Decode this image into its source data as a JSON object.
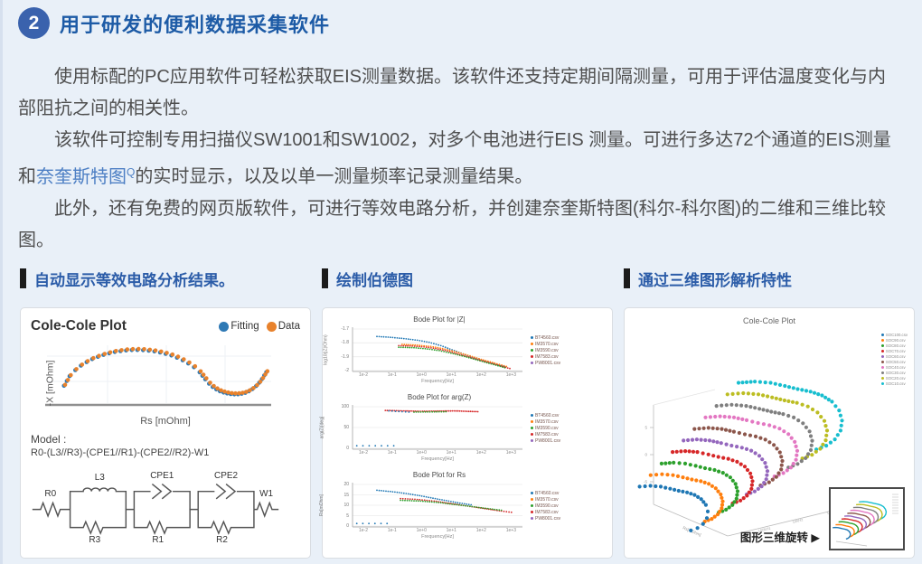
{
  "page": {
    "bg": "#e9f0f8",
    "accent_blue": "#1d5ba6",
    "body_text_color": "#4e4e4e"
  },
  "header": {
    "badge": "2",
    "title": "用于研发的便利数据采集软件"
  },
  "intro": {
    "p1": "使用标配的PC应用软件可轻松获取EIS测量数据。该软件还支持定期间隔测量，可用于评估温度变化与内部阻抗之间的相关性。",
    "p2_pre": "该软件可控制专用扫描仪SW1001和SW1002，对多个电池进行EIS 测量。可进行多达72个通道的EIS测量和",
    "p2_link": "奈奎斯特图",
    "p2_sup": "Q",
    "p2_post": "的实时显示，以及以单一测量频率记录测量结果。",
    "p3": "此外，还有免费的网页版软件，可进行等效电路分析，并创建奈奎斯特图(科尔-科尔图)的二维和三维比较图。"
  },
  "panels": {
    "left_title": "自动显示等效电路分析结果。",
    "mid_title": "绘制伯德图",
    "right_title": "通过三维图形解析特性"
  },
  "cole": {
    "model_label": "Model :",
    "model_formula": "R0-(L3//R3)-(CPE1//R1)-(CPE2//R2)-W1",
    "circuit": {
      "r0": "R0",
      "l3": "L3",
      "r3": "R3",
      "cpe1": "CPE1",
      "r1": "R1",
      "cpe2": "CPE2",
      "r2": "R2",
      "w1": "W1"
    }
  },
  "rotate_note": "图形三维旋转 ▶",
  "chart_data": [
    {
      "type": "scatter",
      "title": "Cole-Cole Plot",
      "xlabel": "Rs [mOhm]",
      "ylabel": "-X [mOhm]",
      "legend": [
        {
          "name": "Fitting",
          "color": "#2e79b5"
        },
        {
          "name": "Data",
          "color": "#e8822c"
        }
      ],
      "points": [
        [
          0.08,
          0.214
        ],
        [
          0.105,
          0.326
        ],
        [
          0.13,
          0.396
        ],
        [
          0.155,
          0.448
        ],
        [
          0.18,
          0.49
        ],
        [
          0.205,
          0.524
        ],
        [
          0.23,
          0.551
        ],
        [
          0.255,
          0.574
        ],
        [
          0.28,
          0.592
        ],
        [
          0.305,
          0.607
        ],
        [
          0.33,
          0.617
        ],
        [
          0.355,
          0.625
        ],
        [
          0.38,
          0.629
        ],
        [
          0.405,
          0.63
        ],
        [
          0.43,
          0.628
        ],
        [
          0.455,
          0.622
        ],
        [
          0.48,
          0.614
        ],
        [
          0.505,
          0.601
        ],
        [
          0.53,
          0.585
        ],
        [
          0.555,
          0.566
        ],
        [
          0.58,
          0.541
        ],
        [
          0.605,
          0.511
        ],
        [
          0.63,
          0.474
        ],
        [
          0.655,
          0.429
        ],
        [
          0.68,
          0.371
        ],
        [
          0.705,
          0.29
        ],
        [
          0.722,
          0.238
        ],
        [
          0.738,
          0.2
        ],
        [
          0.754,
          0.172
        ],
        [
          0.77,
          0.15
        ],
        [
          0.786,
          0.135
        ],
        [
          0.802,
          0.124
        ],
        [
          0.818,
          0.117
        ],
        [
          0.834,
          0.114
        ],
        [
          0.85,
          0.115
        ],
        [
          0.866,
          0.121
        ],
        [
          0.882,
          0.132
        ],
        [
          0.898,
          0.15
        ],
        [
          0.914,
          0.176
        ],
        [
          0.93,
          0.21
        ],
        [
          0.944,
          0.25
        ],
        [
          0.956,
          0.292
        ],
        [
          0.966,
          0.334
        ],
        [
          0.975,
          0.372
        ]
      ]
    },
    {
      "type": "line",
      "xlabel": "Frequency[Hz]",
      "xticks": [
        "1e-2",
        "1e-1",
        "1e+0",
        "1e+1",
        "1e+2",
        "1e+3"
      ],
      "legend_files": [
        "BT4560.csv",
        "IM3570.csv",
        "IM3590.csv",
        "IM7583.csv",
        "PW8001.csv"
      ],
      "legend_colors": [
        "#1f77b4",
        "#ff7f0e",
        "#2ca02c",
        "#d62728",
        "#9467bd"
      ],
      "plots": [
        {
          "title": "Bode Plot for |Z|",
          "ylabel": "log10(|Z|/Ohm)",
          "yticks": [
            "-1.7",
            "-1.8",
            "-1.9",
            "-2"
          ],
          "series": [
            {
              "color": "#1f77b4",
              "gap": 3,
              "pts": [
                [
                  0.14,
                  0.82
                ],
                [
                  0.22,
                  0.8
                ],
                [
                  0.3,
                  0.77
                ],
                [
                  0.38,
                  0.73
                ],
                [
                  0.45,
                  0.68
                ],
                [
                  0.52,
                  0.6
                ],
                [
                  0.6,
                  0.48
                ],
                [
                  0.68,
                  0.36
                ],
                [
                  0.76,
                  0.26
                ],
                [
                  0.84,
                  0.16
                ],
                [
                  0.9,
                  0.09
                ]
              ]
            },
            {
              "color": "#d62728",
              "gap": 3,
              "pts": [
                [
                  0.27,
                  0.6
                ],
                [
                  0.35,
                  0.59
                ],
                [
                  0.42,
                  0.57
                ],
                [
                  0.49,
                  0.53
                ],
                [
                  0.56,
                  0.47
                ],
                [
                  0.63,
                  0.39
                ],
                [
                  0.71,
                  0.3
                ],
                [
                  0.79,
                  0.21
                ],
                [
                  0.87,
                  0.12
                ],
                [
                  0.93,
                  0.05
                ]
              ]
            },
            {
              "color": "#2ca02c",
              "gap": 3,
              "pts": [
                [
                  0.27,
                  0.56
                ],
                [
                  0.36,
                  0.55
                ],
                [
                  0.44,
                  0.52
                ],
                [
                  0.51,
                  0.48
                ],
                [
                  0.58,
                  0.42
                ],
                [
                  0.66,
                  0.34
                ],
                [
                  0.74,
                  0.25
                ],
                [
                  0.82,
                  0.16
                ],
                [
                  0.9,
                  0.07
                ]
              ]
            },
            {
              "color": "#ff7f0e",
              "gap": 3,
              "pts": [
                [
                  0.29,
                  0.63
                ],
                [
                  0.38,
                  0.61
                ],
                [
                  0.46,
                  0.58
                ],
                [
                  0.53,
                  0.53
                ],
                [
                  0.6,
                  0.46
                ],
                [
                  0.68,
                  0.37
                ],
                [
                  0.76,
                  0.27
                ],
                [
                  0.84,
                  0.18
                ],
                [
                  0.91,
                  0.1
                ]
              ]
            }
          ]
        },
        {
          "title": "Bode Plot for arg(Z)",
          "ylabel": "arg(Z)[deg]",
          "yticks": [
            "100",
            "50",
            "0"
          ],
          "series": [
            {
              "color": "#d62728",
              "gap": 2.5,
              "pts": [
                [
                  0.19,
                  0.91
                ],
                [
                  0.4,
                  0.89
                ],
                [
                  0.6,
                  0.9
                ],
                [
                  0.74,
                  0.88
                ]
              ]
            },
            {
              "color": "#2ca02c",
              "gap": 3,
              "pts": [
                [
                  0.36,
                  0.87
                ],
                [
                  0.55,
                  0.88
                ]
              ]
            },
            {
              "color": "#1f77b4",
              "gap": 4.5,
              "pts": [
                [
                  0.21,
                  0.9
                ],
                [
                  0.33,
                  0.87
                ]
              ]
            },
            {
              "color": "#1f77b4",
              "gap": 8,
              "pts": [
                [
                  0.02,
                  0.06
                ],
                [
                  0.24,
                  0.06
                ]
              ]
            }
          ]
        },
        {
          "title": "Bode Plot for Rs",
          "ylabel": "Rs[mOhm]",
          "yticks": [
            "20",
            "15",
            "10",
            "5",
            "0"
          ],
          "series": [
            {
              "color": "#1f77b4",
              "gap": 3,
              "pts": [
                [
                  0.14,
                  0.86
                ],
                [
                  0.22,
                  0.83
                ],
                [
                  0.3,
                  0.79
                ],
                [
                  0.38,
                  0.74
                ],
                [
                  0.46,
                  0.68
                ],
                [
                  0.54,
                  0.62
                ],
                [
                  0.62,
                  0.56
                ],
                [
                  0.7,
                  0.51
                ]
              ]
            },
            {
              "color": "#d62728",
              "gap": 3,
              "pts": [
                [
                  0.28,
                  0.66
                ],
                [
                  0.38,
                  0.64
                ],
                [
                  0.48,
                  0.6
                ],
                [
                  0.58,
                  0.54
                ],
                [
                  0.68,
                  0.48
                ],
                [
                  0.78,
                  0.42
                ],
                [
                  0.88,
                  0.36
                ],
                [
                  0.94,
                  0.33
                ]
              ]
            },
            {
              "color": "#2ca02c",
              "gap": 3,
              "pts": [
                [
                  0.28,
                  0.62
                ],
                [
                  0.4,
                  0.6
                ],
                [
                  0.52,
                  0.56
                ],
                [
                  0.64,
                  0.5
                ],
                [
                  0.76,
                  0.44
                ],
                [
                  0.88,
                  0.38
                ]
              ]
            },
            {
              "color": "#1f77b4",
              "gap": 8,
              "pts": [
                [
                  0.02,
                  0.06
                ],
                [
                  0.2,
                  0.06
                ]
              ]
            }
          ]
        }
      ]
    },
    {
      "type": "scatter3d",
      "title": "Cole-Cole Plot",
      "xlabel": "Rs[mOhm]",
      "freq_ticks": [
        "100kHz",
        "10kHz",
        "1kHz",
        "100Hz"
      ],
      "ytick_labels": [
        "5",
        "0",
        "-5"
      ],
      "hook": [
        [
          -0.95,
          -0.1
        ],
        [
          -0.72,
          -0.12
        ],
        [
          -0.5,
          -0.1
        ],
        [
          -0.3,
          -0.05
        ],
        [
          -0.12,
          0.0
        ],
        [
          0.06,
          0.04
        ],
        [
          0.22,
          0.1
        ],
        [
          0.36,
          0.2
        ],
        [
          0.46,
          0.34
        ],
        [
          0.5,
          0.5
        ],
        [
          0.48,
          0.66
        ],
        [
          0.4,
          0.8
        ],
        [
          0.28,
          0.9
        ],
        [
          0.14,
          0.96
        ]
      ],
      "series": [
        {
          "name": "SOC100.csv",
          "color": "#1f77b4"
        },
        {
          "name": "SOC90.csv",
          "color": "#ff7f0e"
        },
        {
          "name": "SOC80.csv",
          "color": "#2ca02c"
        },
        {
          "name": "SOC70.csv",
          "color": "#d62728"
        },
        {
          "name": "SOC60.csv",
          "color": "#9467bd"
        },
        {
          "name": "SOC50.csv",
          "color": "#8c564b"
        },
        {
          "name": "SOC40.csv",
          "color": "#e377c2"
        },
        {
          "name": "SOC30.csv",
          "color": "#7f7f7f"
        },
        {
          "name": "SOC20.csv",
          "color": "#bcbd22"
        },
        {
          "name": "SOC10.csv",
          "color": "#17becf"
        }
      ]
    }
  ]
}
